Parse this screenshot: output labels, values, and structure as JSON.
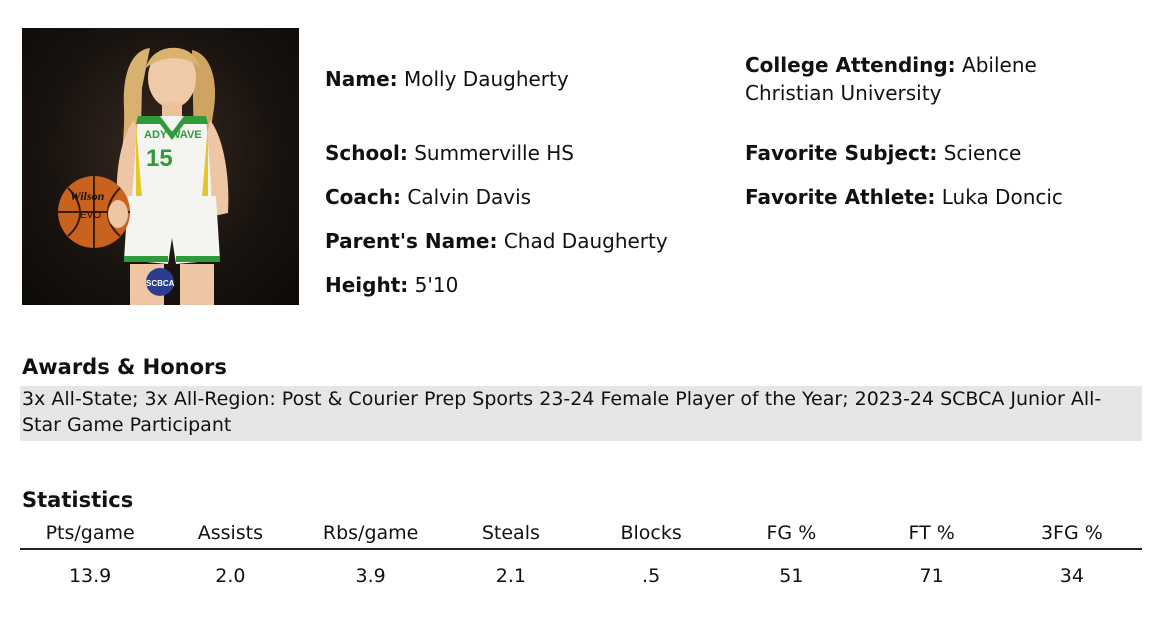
{
  "player": {
    "name_label": "Name:",
    "name": "Molly Daugherty",
    "school_label": "School:",
    "school": "Summerville HS",
    "coach_label": "Coach:",
    "coach": "Calvin Davis",
    "parent_label": "Parent's Name:",
    "parent": "Chad Daugherty",
    "height_label": "Height:",
    "height": "5'10",
    "college_label": "College Attending:",
    "college": "Abilene Christian University",
    "subject_label": "Favorite Subject:",
    "subject": "Science",
    "athlete_label": "Favorite Athlete:",
    "athlete": "Luka Doncic"
  },
  "photo": {
    "jersey_text": "ADY WAVE",
    "jersey_number": "15",
    "ball_brand": "Wilson",
    "ball_text": "EVO",
    "logo_text": "SCBCA",
    "colors": {
      "jersey": "#f4f4f0",
      "trim_green": "#2f9a3a",
      "trim_yellow": "#e6c627",
      "ball": "#c9621e"
    }
  },
  "awards": {
    "title": "Awards & Honors",
    "text": "3x All-State; 3x All-Region: Post & Courier Prep Sports 23-24 Female Player of the Year; 2023-24 SCBCA Junior All-Star Game Participant"
  },
  "statistics": {
    "title": "Statistics",
    "headers": [
      "Pts/game",
      "Assists",
      "Rbs/game",
      "Steals",
      "Blocks",
      "FG %",
      "FT %",
      "3FG %"
    ],
    "values": [
      "13.9",
      "2.0",
      "3.9",
      "2.1",
      ".5",
      "51",
      "71",
      "34"
    ]
  }
}
